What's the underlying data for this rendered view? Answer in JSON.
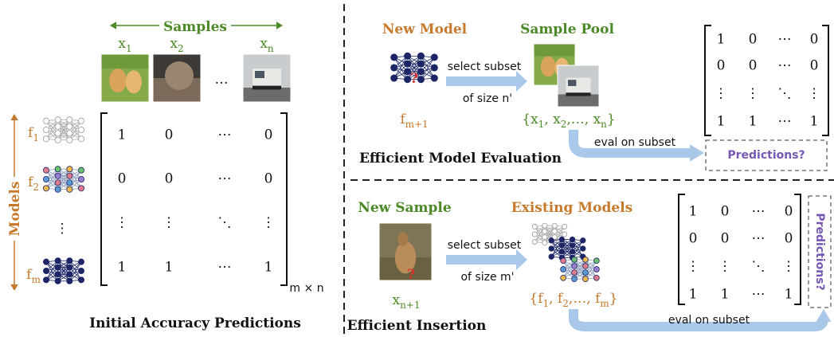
{
  "initial": {
    "samples_title": "Samples",
    "samples": [
      [
        {
          "text": "x"
        },
        {
          "sub": "1"
        }
      ],
      [
        {
          "text": "x"
        },
        {
          "sub": "2"
        }
      ],
      [
        {
          "text": "x"
        },
        {
          "sub": "n"
        }
      ]
    ],
    "samples_ellipsis": "…",
    "models_title": "Models",
    "models": [
      [
        {
          "text": "f"
        },
        {
          "sub": "1"
        }
      ],
      [
        {
          "text": "f"
        },
        {
          "sub": "2"
        }
      ],
      [
        {
          "text": "f"
        },
        {
          "sub": "m"
        }
      ]
    ],
    "models_ellipsis": "⋮",
    "matrix": [
      [
        1,
        0,
        "⋯",
        0
      ],
      [
        0,
        0,
        "⋯",
        0
      ],
      [
        "⋮",
        "⋮",
        "⋱",
        "⋮"
      ],
      [
        1,
        1,
        "⋯",
        1
      ]
    ],
    "matrix_size": "m × n",
    "caption": "Initial Accuracy Predictions"
  },
  "evaluation": {
    "new_title": "New Model",
    "new_label": [
      {
        "text": "f"
      },
      {
        "sub": "m+1"
      }
    ],
    "question": "?",
    "arrow_top": "select subset",
    "arrow_bottom": "of size n'",
    "pool_title": "Sample Pool",
    "pool_set": [
      {
        "text": "{x"
      },
      {
        "sub": "1"
      },
      {
        "text": ", x"
      },
      {
        "sub": "2"
      },
      {
        "text": ",…, x"
      },
      {
        "sub": "n"
      },
      {
        "text": "}"
      }
    ],
    "matrix": [
      [
        1,
        0,
        "⋯",
        0
      ],
      [
        0,
        0,
        "⋯",
        0
      ],
      [
        "⋮",
        "⋮",
        "⋱",
        "⋮"
      ],
      [
        1,
        1,
        "⋯",
        1
      ]
    ],
    "eval_label": "eval on subset",
    "predictions": "Predictions?",
    "caption": "Efficient Model Evaluation"
  },
  "insertion": {
    "new_title": "New Sample",
    "new_label": [
      {
        "text": "x"
      },
      {
        "sub": "n+1"
      }
    ],
    "question": "?",
    "arrow_top": "select subset",
    "arrow_bottom": "of size m'",
    "pool_title": "Existing Models",
    "pool_set": [
      {
        "text": "{f"
      },
      {
        "sub": "1"
      },
      {
        "text": ", f"
      },
      {
        "sub": "2"
      },
      {
        "text": ",…, f"
      },
      {
        "sub": "m"
      },
      {
        "text": "}"
      }
    ],
    "matrix": [
      [
        1,
        0,
        "⋯",
        0
      ],
      [
        0,
        0,
        "⋯",
        0
      ],
      [
        "⋮",
        "⋮",
        "⋱",
        "⋮"
      ],
      [
        1,
        1,
        "⋯",
        1
      ]
    ],
    "eval_label": "eval on subset",
    "predictions": "Predictions?",
    "caption": "Efficient Insertion"
  }
}
